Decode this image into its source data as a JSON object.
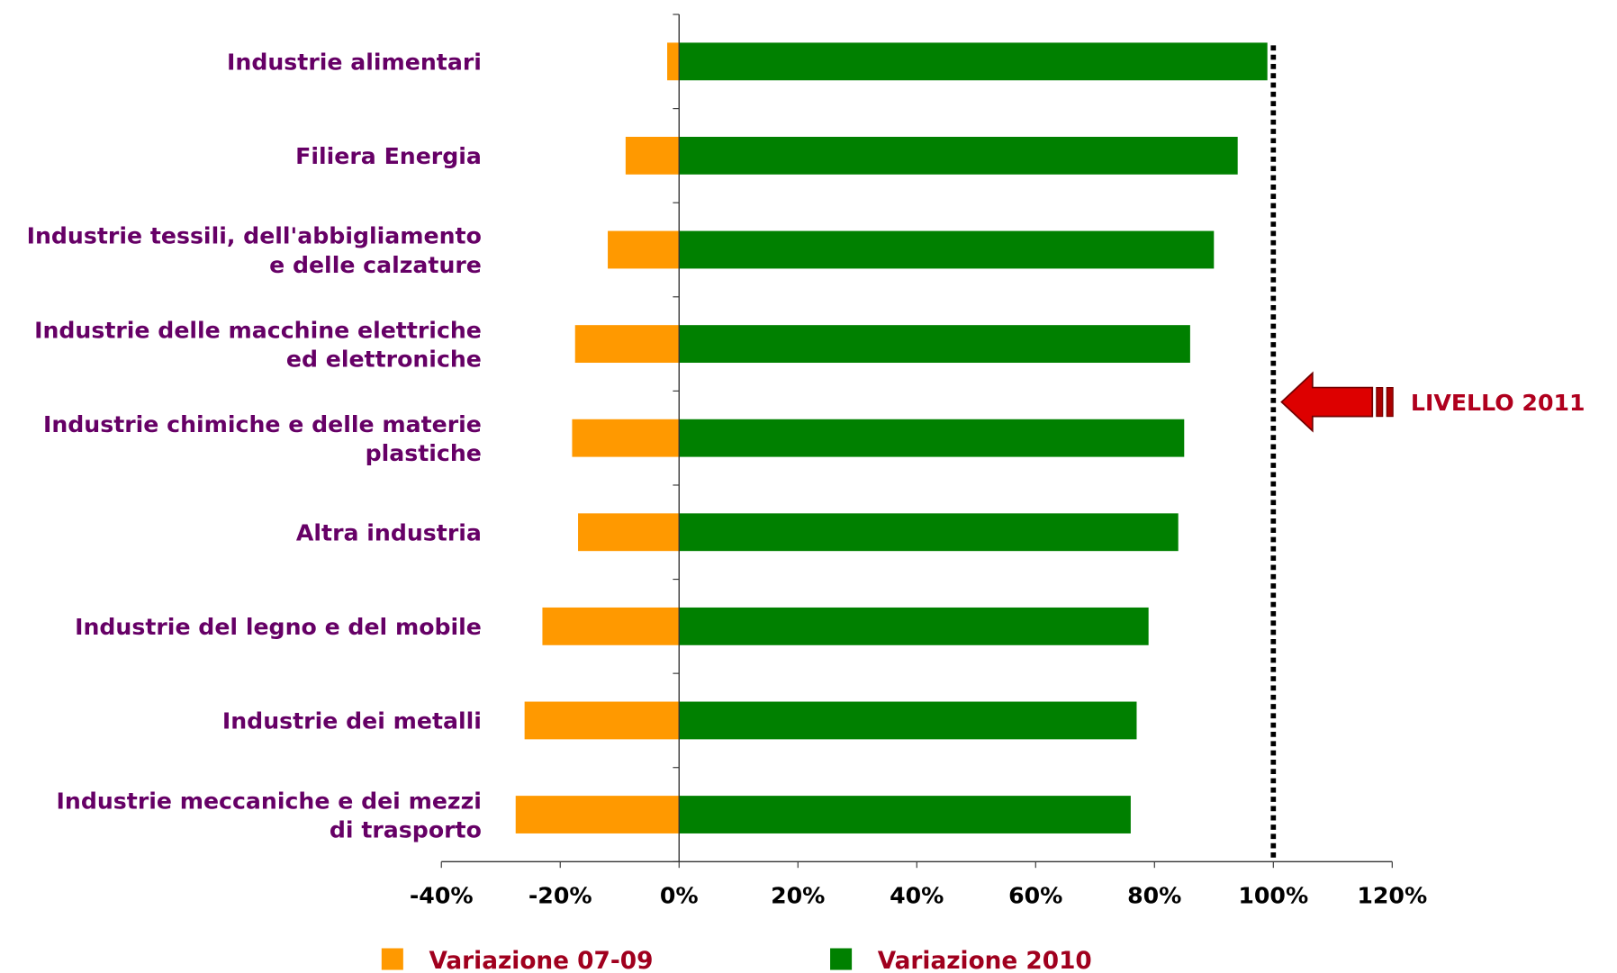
{
  "chart_data": {
    "type": "barh",
    "categories": [
      "Industrie alimentari",
      "Filiera Energia",
      "Industrie tessili, dell'abbigliamento\ne delle calzature",
      "Industrie delle macchine elettriche\ned elettroniche",
      "Industrie chimiche e delle materie\nplastiche",
      "Altra industria",
      "Industrie del legno e del mobile",
      "Industrie dei metalli",
      "Industrie meccaniche e dei mezzi\ndi trasporto"
    ],
    "series": [
      {
        "name": "Variazione 07-09",
        "color": "#ff9900",
        "values": [
          -2,
          -9,
          -12,
          -17.5,
          -18,
          -17,
          -23,
          -26,
          -27.5
        ]
      },
      {
        "name": "Variazione 2010",
        "color": "#008000",
        "values": [
          99,
          94,
          90,
          86,
          85,
          84,
          79,
          77,
          76
        ]
      }
    ],
    "xlim": [
      -40,
      120
    ],
    "xticks": [
      {
        "value": -40,
        "label": "-40%"
      },
      {
        "value": -20,
        "label": "-20%"
      },
      {
        "value": 0,
        "label": "0%"
      },
      {
        "value": 20,
        "label": "20%"
      },
      {
        "value": 40,
        "label": "40%"
      },
      {
        "value": 60,
        "label": "60%"
      },
      {
        "value": 80,
        "label": "80%"
      },
      {
        "value": 100,
        "label": "100%"
      },
      {
        "value": 120,
        "label": "120%"
      }
    ],
    "annotation": {
      "text": "LIVELLO 2011",
      "value": 100
    },
    "legend": "bottom"
  }
}
